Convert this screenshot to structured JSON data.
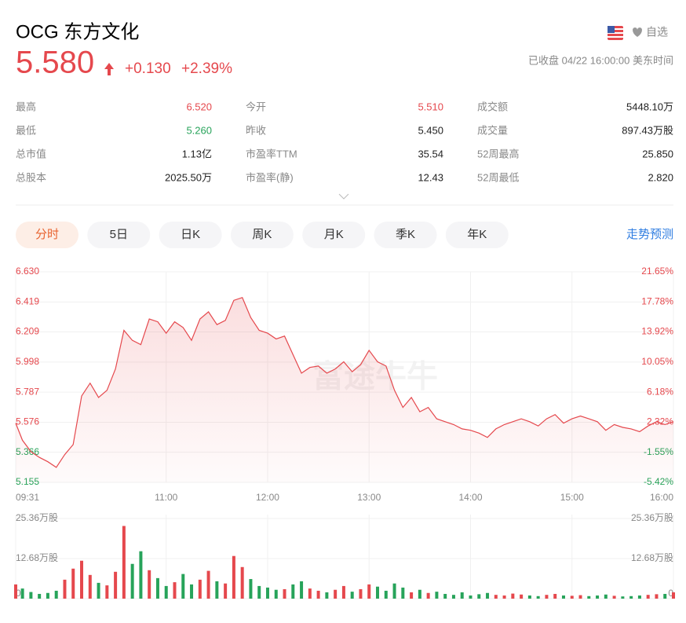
{
  "header": {
    "title": "OCG 东方文化",
    "price": "5.580",
    "change": "+0.130",
    "change_pct": "+2.39%",
    "watchlist": "自选",
    "status": "已收盘 04/22 16:00:00 美东时间"
  },
  "stats": [
    {
      "label": "最高",
      "value": "6.520",
      "color": "#e5484d"
    },
    {
      "label": "今开",
      "value": "5.510",
      "color": "#e5484d"
    },
    {
      "label": "成交额",
      "value": "5448.10万",
      "color": "#222222"
    },
    {
      "label": "最低",
      "value": "5.260",
      "color": "#27a35a"
    },
    {
      "label": "昨收",
      "value": "5.450",
      "color": "#222222"
    },
    {
      "label": "成交量",
      "value": "897.43万股",
      "color": "#222222"
    },
    {
      "label": "总市值",
      "value": "1.13亿",
      "color": "#222222"
    },
    {
      "label": "市盈率TTM",
      "value": "35.54",
      "color": "#222222"
    },
    {
      "label": "52周最高",
      "value": "25.850",
      "color": "#222222"
    },
    {
      "label": "总股本",
      "value": "2025.50万",
      "color": "#222222"
    },
    {
      "label": "市盈率(静)",
      "value": "12.43",
      "color": "#222222"
    },
    {
      "label": "52周最低",
      "value": "2.820",
      "color": "#222222"
    }
  ],
  "tabs": [
    "分时",
    "5日",
    "日K",
    "周K",
    "月K",
    "季K",
    "年K"
  ],
  "forecast": "走势预测",
  "watermark": "富途牛牛",
  "chart_data": [
    {
      "type": "line",
      "color": "#e5484d",
      "x": [
        "09:31",
        "09:35",
        "09:40",
        "09:45",
        "09:50",
        "09:55",
        "10:00",
        "10:05",
        "10:10",
        "10:15",
        "10:20",
        "10:25",
        "10:30",
        "10:35",
        "10:40",
        "10:45",
        "10:50",
        "10:55",
        "11:00",
        "11:05",
        "11:10",
        "11:15",
        "11:20",
        "11:25",
        "11:30",
        "11:35",
        "11:40",
        "11:45",
        "11:50",
        "11:55",
        "12:00",
        "12:05",
        "12:10",
        "12:15",
        "12:20",
        "12:25",
        "12:30",
        "12:35",
        "12:40",
        "12:45",
        "12:50",
        "12:55",
        "13:00",
        "13:05",
        "13:10",
        "13:15",
        "13:20",
        "13:25",
        "13:30",
        "13:35",
        "13:40",
        "13:45",
        "13:50",
        "13:55",
        "14:00",
        "14:05",
        "14:10",
        "14:15",
        "14:20",
        "14:25",
        "14:30",
        "14:35",
        "14:40",
        "14:45",
        "14:50",
        "14:55",
        "15:00",
        "15:05",
        "15:10",
        "15:15",
        "15:20",
        "15:25",
        "15:30",
        "15:35",
        "15:40",
        "15:45",
        "15:50",
        "15:55",
        "16:00"
      ],
      "values": [
        5.57,
        5.45,
        5.37,
        5.33,
        5.3,
        5.26,
        5.35,
        5.42,
        5.76,
        5.85,
        5.75,
        5.8,
        5.95,
        6.22,
        6.15,
        6.12,
        6.3,
        6.28,
        6.2,
        6.28,
        6.24,
        6.15,
        6.3,
        6.35,
        6.26,
        6.29,
        6.43,
        6.45,
        6.31,
        6.22,
        6.2,
        6.16,
        6.18,
        6.05,
        5.92,
        5.96,
        5.97,
        5.92,
        5.95,
        6.0,
        5.93,
        5.98,
        6.08,
        6.0,
        5.97,
        5.8,
        5.68,
        5.75,
        5.65,
        5.68,
        5.6,
        5.58,
        5.56,
        5.53,
        5.52,
        5.5,
        5.47,
        5.53,
        5.56,
        5.58,
        5.6,
        5.58,
        5.55,
        5.6,
        5.63,
        5.57,
        5.6,
        5.62,
        5.6,
        5.58,
        5.52,
        5.56,
        5.54,
        5.53,
        5.51,
        5.55,
        5.58,
        5.56,
        5.58
      ],
      "xlim": [
        "09:31",
        "16:00"
      ],
      "xticks": [
        "09:31",
        "11:00",
        "12:00",
        "13:00",
        "14:00",
        "15:00",
        "16:00"
      ],
      "ylim": [
        5.155,
        6.63
      ],
      "yticks": [
        {
          "value": 6.63,
          "label": "6.630"
        },
        6.419,
        6.209,
        5.998,
        5.787,
        5.576,
        5.366,
        5.155
      ],
      "y2lim": [
        -5.42,
        21.65
      ],
      "y2ticks": [
        {
          "value": 21.65,
          "label": "21.65%"
        },
        {
          "value": 17.78,
          "label": "17.78%"
        },
        {
          "value": 13.92,
          "label": "13.92%"
        },
        {
          "value": 10.05,
          "label": "10.05%"
        },
        {
          "value": 6.18,
          "label": "6.18%"
        },
        {
          "value": 2.32,
          "label": "2.32%"
        },
        {
          "value": -1.55,
          "label": "-1.55%"
        },
        {
          "value": -5.42,
          "label": "-5.42%"
        }
      ],
      "grid": true
    },
    {
      "type": "bar",
      "up_color": "#e5484d",
      "down_color": "#27a35a",
      "values": [
        4.5,
        3.2,
        2.1,
        1.5,
        1.8,
        2.5,
        6.0,
        9.5,
        12.0,
        7.5,
        5.0,
        4.2,
        8.5,
        23.0,
        11.0,
        15.0,
        9.0,
        6.5,
        4.0,
        5.2,
        7.8,
        4.5,
        6.0,
        8.8,
        5.5,
        4.8,
        13.5,
        10.0,
        6.2,
        4.0,
        3.5,
        2.8,
        3.0,
        4.5,
        5.5,
        3.2,
        2.5,
        2.0,
        2.8,
        4.0,
        2.2,
        3.0,
        4.5,
        3.8,
        2.5,
        4.8,
        3.5,
        2.0,
        2.8,
        1.8,
        2.2,
        1.5,
        1.2,
        2.0,
        1.0,
        1.4,
        1.8,
        1.2,
        1.0,
        1.6,
        1.3,
        1.0,
        0.8,
        1.2,
        1.5,
        1.0,
        0.9,
        1.1,
        0.8,
        1.0,
        1.3,
        0.9,
        0.7,
        0.8,
        1.0,
        1.2,
        1.4,
        1.5,
        2.0
      ],
      "ylim": [
        0,
        25.36
      ],
      "yticks": [
        {
          "value": 25.36,
          "label": "25.36万股"
        },
        {
          "value": 12.68,
          "label": "12.68万股"
        },
        0
      ],
      "grid": true
    }
  ]
}
